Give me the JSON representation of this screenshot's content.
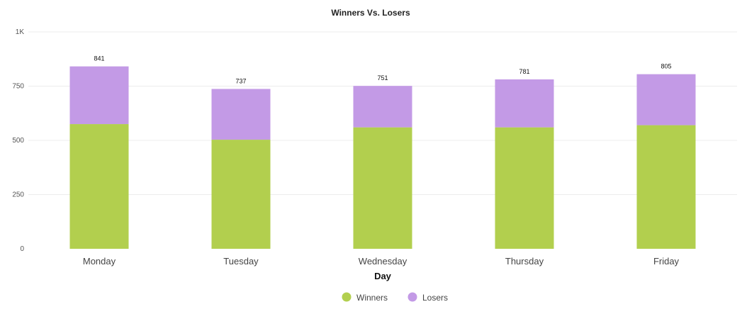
{
  "chart_data": {
    "type": "bar",
    "stacked": true,
    "title": "Winners Vs. Losers",
    "xlabel": "Day",
    "ylabel": "",
    "categories": [
      "Monday",
      "Tuesday",
      "Wednesday",
      "Thursday",
      "Friday"
    ],
    "series": [
      {
        "name": "Winners",
        "values": [
          575,
          503,
          560,
          560,
          570
        ],
        "color": "#b2cf4e"
      },
      {
        "name": "Losers",
        "values": [
          266,
          234,
          191,
          221,
          235
        ],
        "color": "#c39ae6"
      }
    ],
    "totals": [
      841,
      737,
      751,
      781,
      805
    ],
    "total_labels": [
      "841",
      "737",
      "751",
      "781",
      "805"
    ],
    "ylim": [
      0,
      1000
    ],
    "yticks": [
      0,
      250,
      500,
      750,
      1000
    ],
    "ytick_labels": [
      "0",
      "250",
      "500",
      "750",
      "1K"
    ],
    "grid": true,
    "legend_position": "bottom-center"
  }
}
